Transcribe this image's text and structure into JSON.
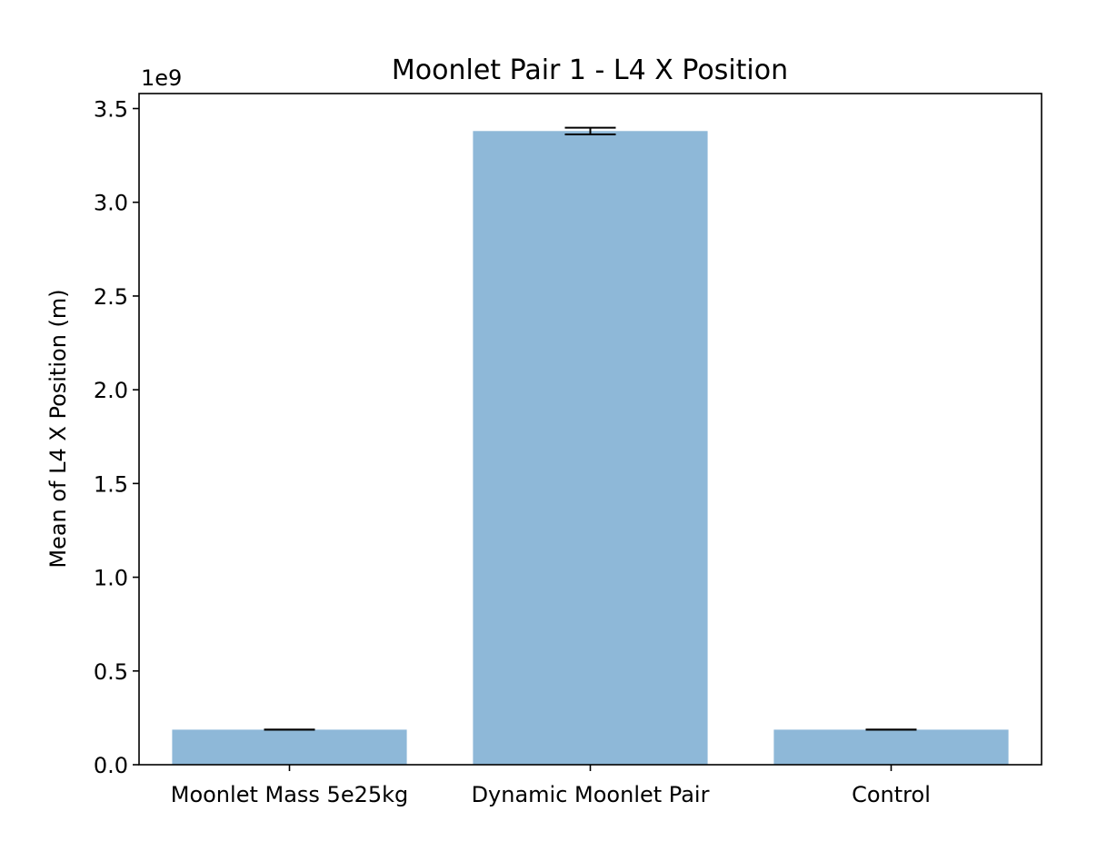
{
  "chart_data": {
    "type": "bar",
    "title": "Moonlet Pair 1 - L4 X Position",
    "xlabel": "",
    "ylabel": "Mean of L4 X Position (m)",
    "offset_label": "1e9",
    "scale": 1000000000,
    "categories": [
      "Moonlet Mass 5e25kg",
      "Dynamic Moonlet Pair",
      "Control"
    ],
    "values": [
      0.187,
      3.38,
      0.187
    ],
    "errors": [
      0.0,
      0.018,
      0.0
    ],
    "ylim": [
      0,
      3.58
    ],
    "yticks": [
      0.0,
      0.5,
      1.0,
      1.5,
      2.0,
      2.5,
      3.0,
      3.5
    ],
    "ytick_labels": [
      "0.0",
      "0.5",
      "1.0",
      "1.5",
      "2.0",
      "2.5",
      "3.0",
      "3.5"
    ],
    "bar_color": "#8eb8d8",
    "bar_alpha": 1.0,
    "grid": false
  }
}
